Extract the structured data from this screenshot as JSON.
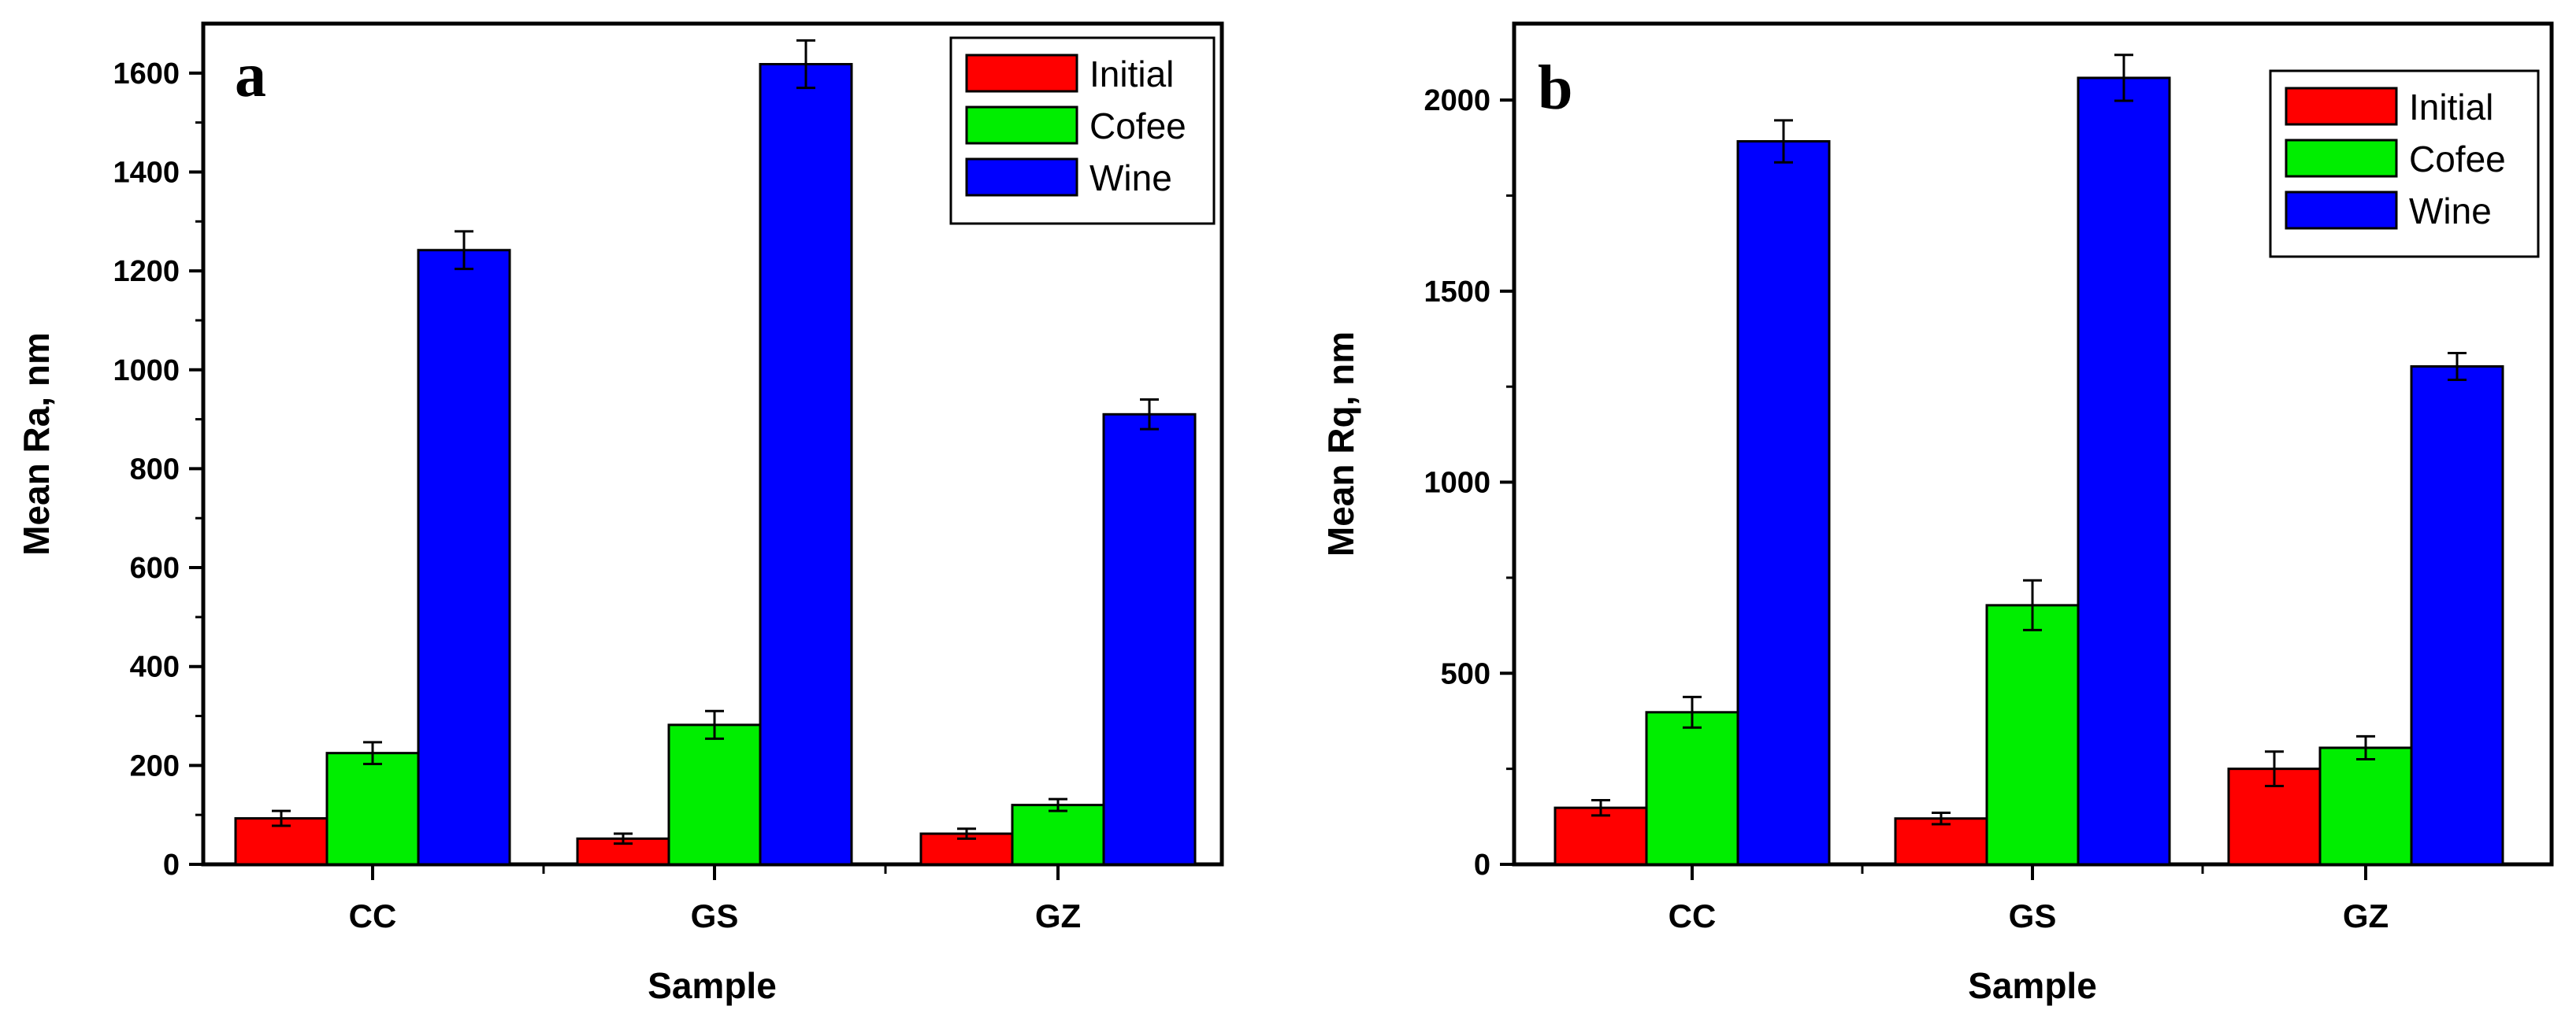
{
  "chart_data": [
    {
      "type": "bar",
      "panel_label": "a",
      "title": "",
      "xlabel": "Sample",
      "ylabel": "Mean Ra, nm",
      "categories": [
        "CC",
        "GS",
        "GZ"
      ],
      "ylim": [
        0,
        1700
      ],
      "yticks": [
        0,
        200,
        400,
        600,
        800,
        1000,
        1200,
        1400,
        1600
      ],
      "ytick_labels": [
        "0",
        "200",
        "400",
        "600",
        "800",
        "1000",
        "1200",
        "1400",
        "1600"
      ],
      "series": [
        {
          "name": "Initial",
          "color": "#ff0000",
          "values": [
            93,
            52,
            62
          ],
          "errors": [
            15,
            10,
            10
          ]
        },
        {
          "name": "Cofee",
          "color": "#00ee00",
          "values": [
            225,
            282,
            120
          ],
          "errors": [
            22,
            28,
            12
          ]
        },
        {
          "name": "Wine",
          "color": "#0000ff",
          "values": [
            1242,
            1618,
            910
          ],
          "errors": [
            38,
            48,
            30
          ]
        }
      ],
      "legend_position": "top-right"
    },
    {
      "type": "bar",
      "panel_label": "b",
      "title": "",
      "xlabel": "Sample",
      "ylabel": "Mean Rq, nm",
      "categories": [
        "CC",
        "GS",
        "GZ"
      ],
      "ylim": [
        0,
        2200
      ],
      "yticks": [
        0,
        500,
        1000,
        1500,
        2000
      ],
      "ytick_labels": [
        "0",
        "500",
        "1000",
        "1500",
        "2000"
      ],
      "series": [
        {
          "name": "Initial",
          "color": "#ff0000",
          "values": [
            148,
            120,
            250
          ],
          "errors": [
            20,
            15,
            45
          ]
        },
        {
          "name": "Cofee",
          "color": "#00ee00",
          "values": [
            398,
            678,
            305
          ],
          "errors": [
            40,
            65,
            30
          ]
        },
        {
          "name": "Wine",
          "color": "#0000ff",
          "values": [
            1892,
            2058,
            1303
          ],
          "errors": [
            55,
            60,
            35
          ]
        }
      ],
      "legend_position": "top-right"
    }
  ]
}
